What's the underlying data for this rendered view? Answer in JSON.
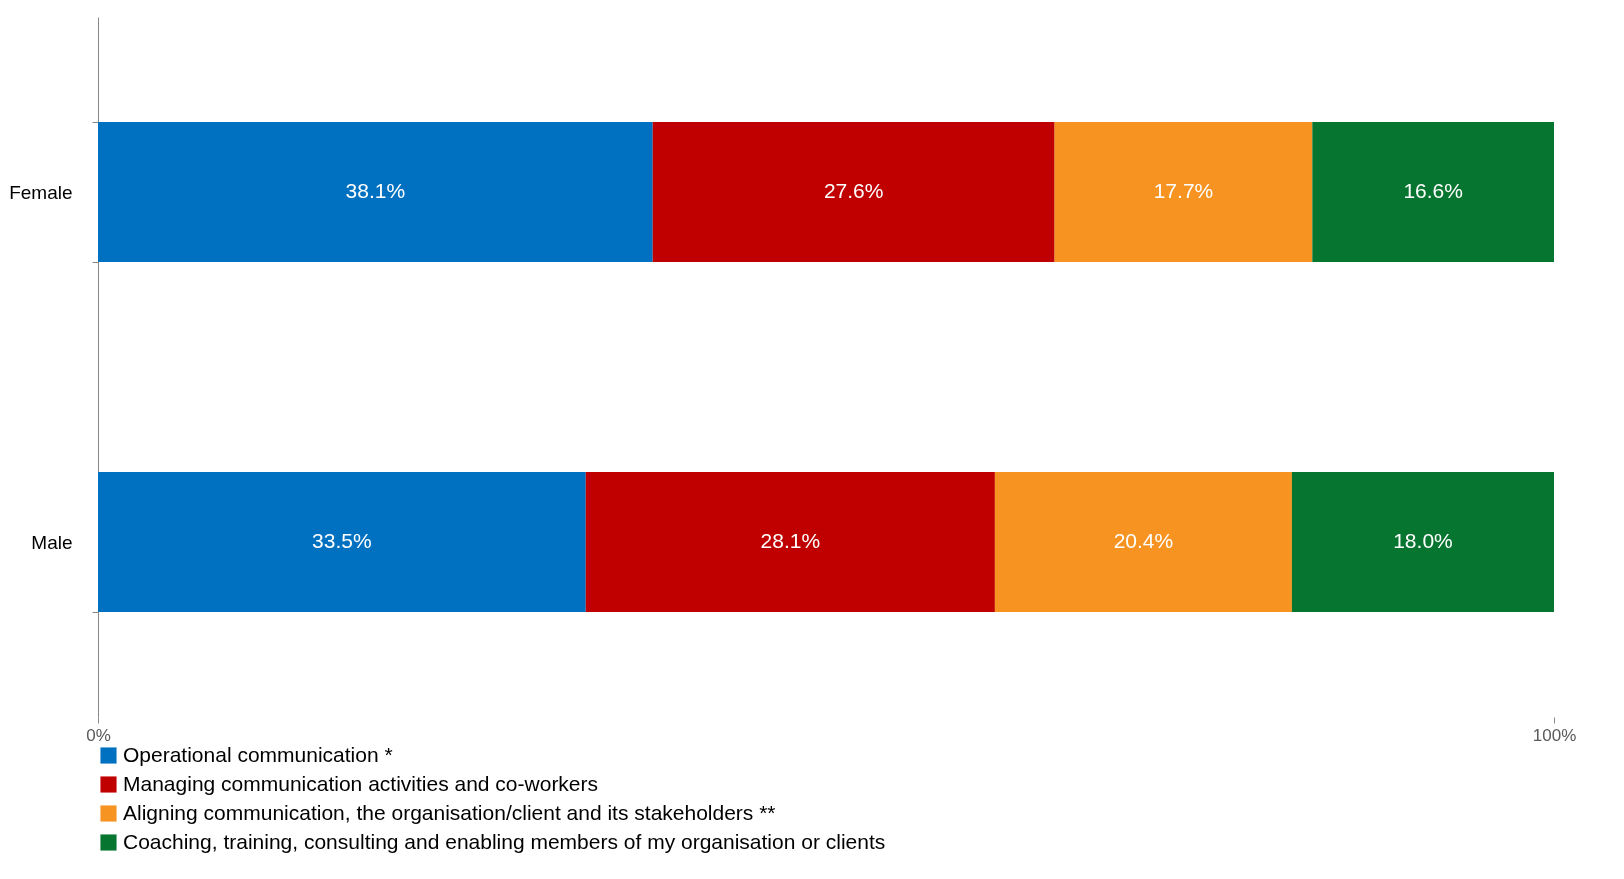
{
  "chart_data": {
    "type": "bar",
    "orientation": "horizontal",
    "stacked": true,
    "categories": [
      "Female",
      "Male"
    ],
    "series": [
      {
        "name": "Operational communication *",
        "color": "#0070c0",
        "values": [
          38.1,
          33.5
        ],
        "value_labels": [
          "38.1%",
          "33.5%"
        ]
      },
      {
        "name": "Managing communication activities and co-workers",
        "color": "#c00000",
        "values": [
          27.6,
          28.1
        ],
        "value_labels": [
          "27.6%",
          "28.1%"
        ]
      },
      {
        "name": "Aligning communication, the organisation/client and its stakeholders **",
        "color": "#f79320",
        "values": [
          17.7,
          20.4
        ],
        "value_labels": [
          "17.7%",
          "20.4%"
        ]
      },
      {
        "name": "Coaching, training, consulting and enabling members of my organisation or clients",
        "color": "#06752f",
        "values": [
          16.6,
          18.0
        ],
        "value_labels": [
          "16.6%",
          "18.0%"
        ]
      }
    ],
    "xlim": [
      0,
      100
    ],
    "xticks": [
      {
        "value": 0,
        "label": "0%"
      },
      {
        "value": 100,
        "label": "100%"
      }
    ],
    "grid": false,
    "legend": "bottom"
  }
}
